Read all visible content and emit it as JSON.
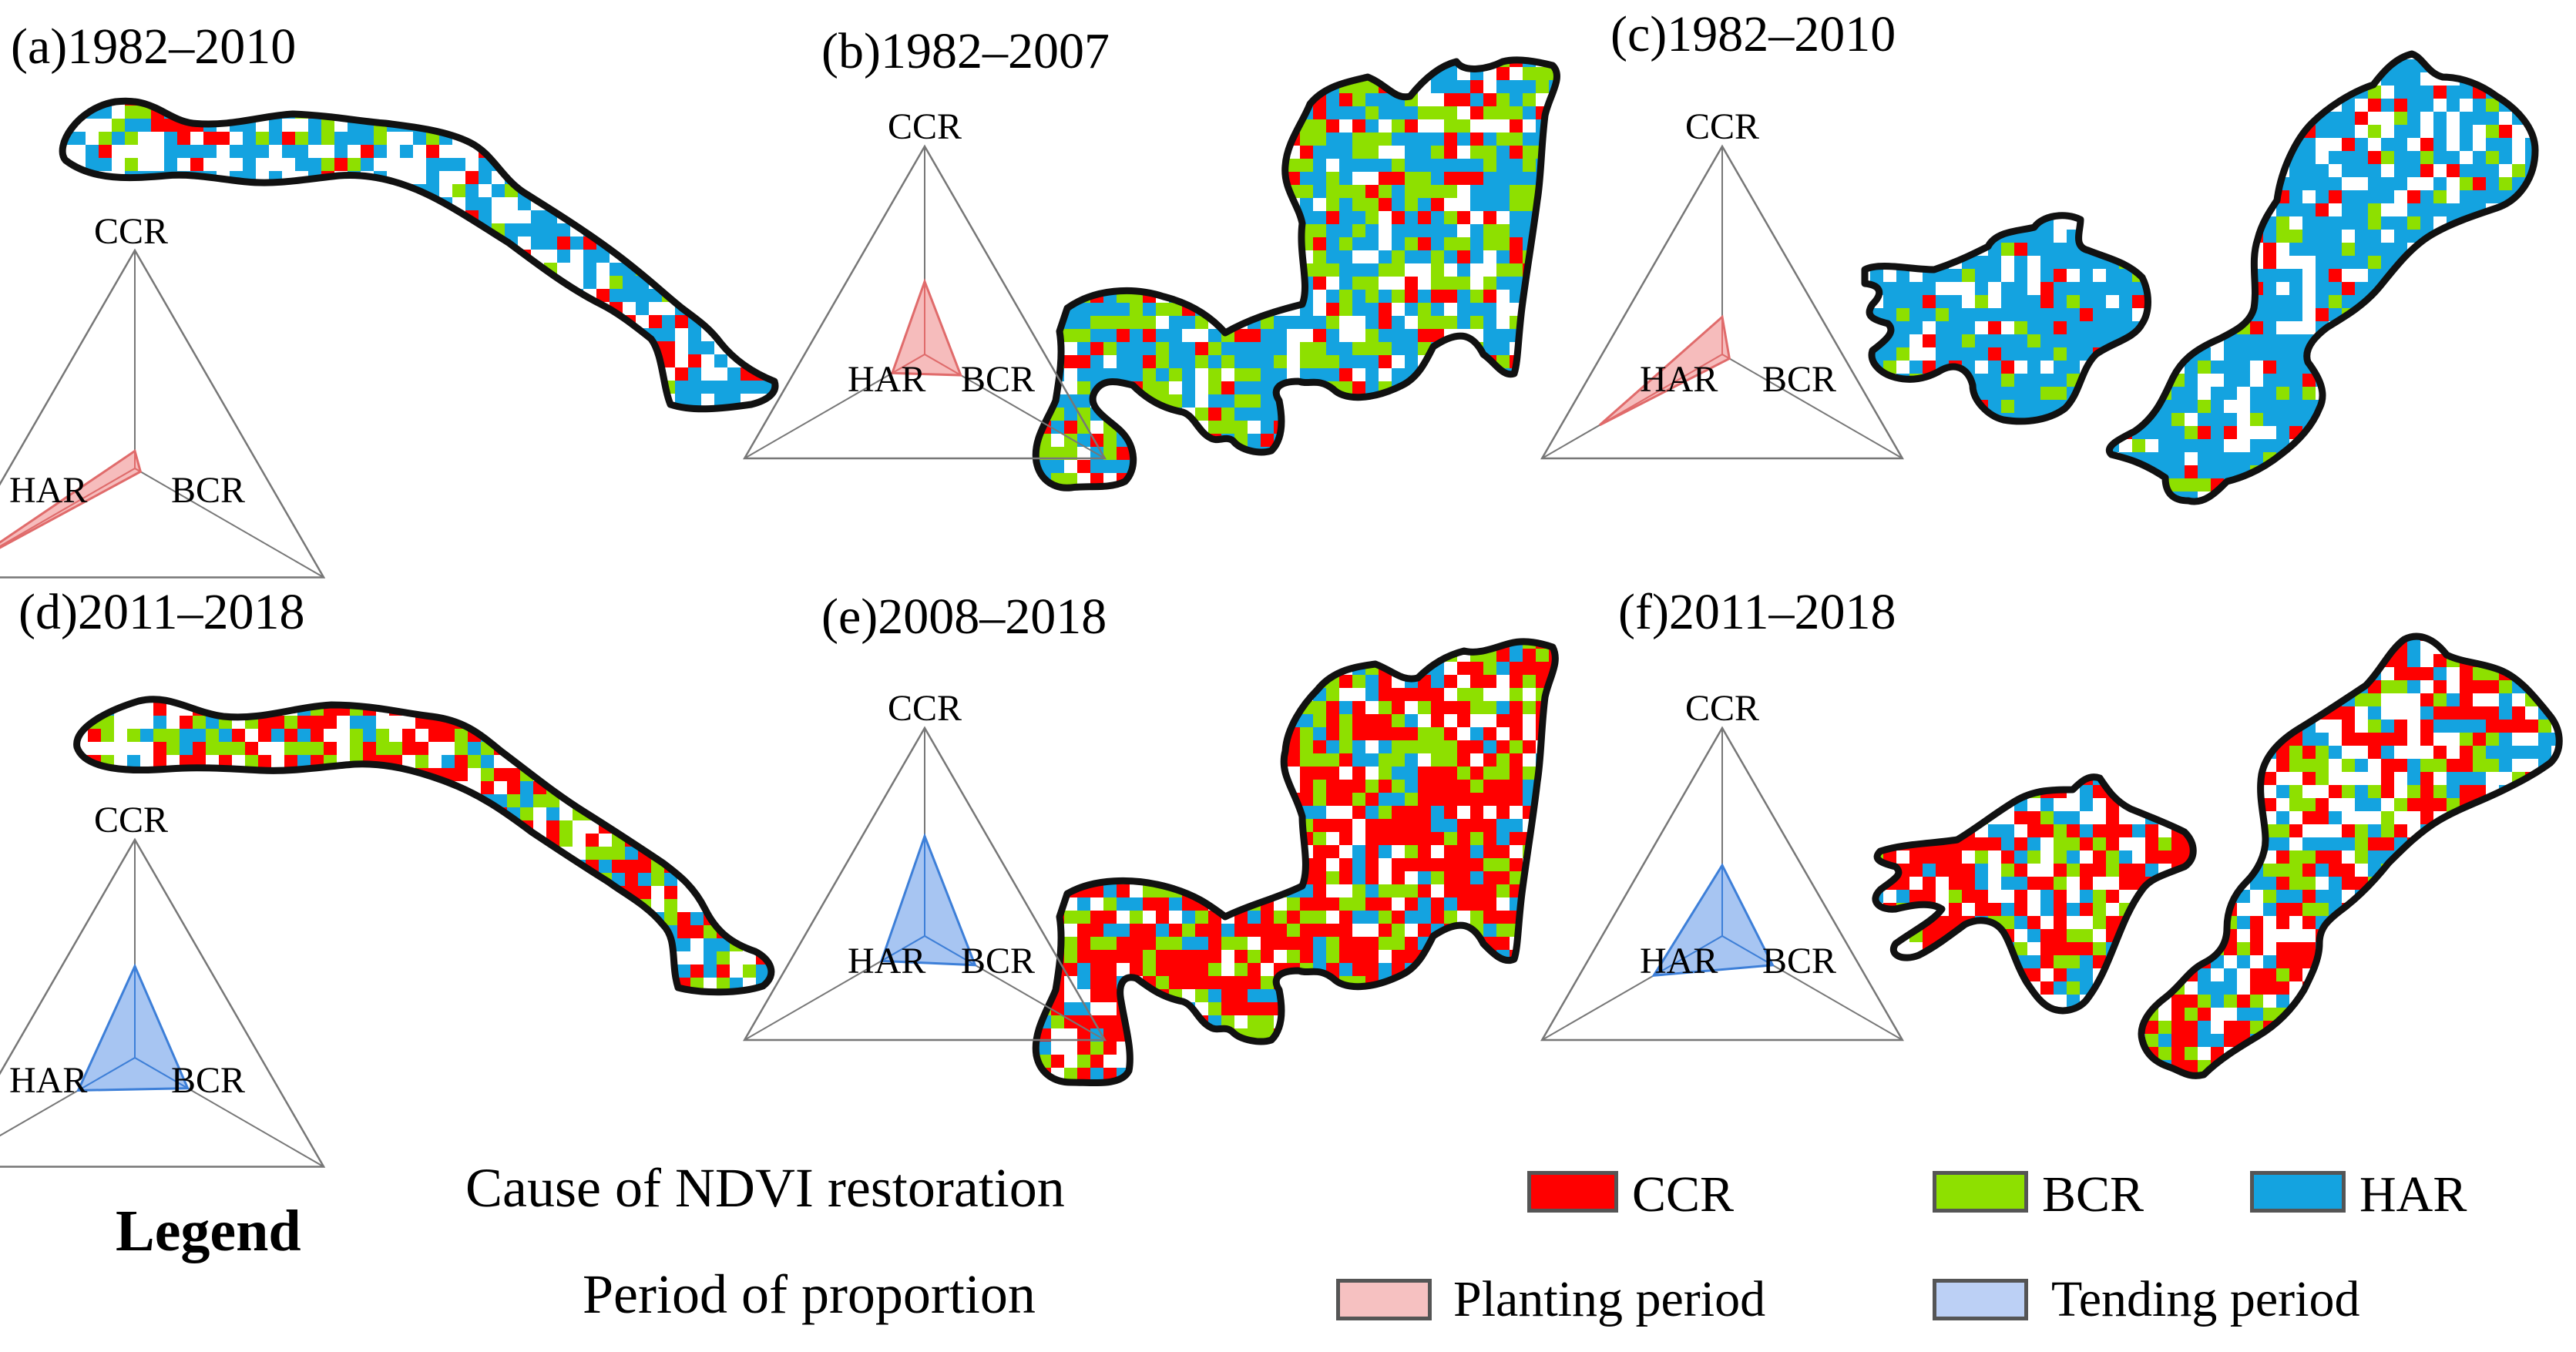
{
  "figure": {
    "panels": [
      {
        "id": "a",
        "title": "(a)1982–2010",
        "period_type": "planting",
        "radar": {
          "axes": [
            "CCR",
            "BCR",
            "HAR"
          ],
          "values": [
            0.08,
            0.03,
            0.92
          ]
        }
      },
      {
        "id": "b",
        "title": "(b)1982–2007",
        "period_type": "planting",
        "radar": {
          "axes": [
            "CCR",
            "BCR",
            "HAR"
          ],
          "values": [
            0.35,
            0.2,
            0.18
          ]
        }
      },
      {
        "id": "c",
        "title": "(c)1982–2010",
        "period_type": "planting",
        "radar": {
          "axes": [
            "CCR",
            "BCR",
            "HAR"
          ],
          "values": [
            0.18,
            0.04,
            0.68
          ]
        }
      },
      {
        "id": "d",
        "title": "(d)2011–2018",
        "period_type": "tending",
        "radar": {
          "axes": [
            "CCR",
            "BCR",
            "HAR"
          ],
          "values": [
            0.42,
            0.28,
            0.3
          ]
        }
      },
      {
        "id": "e",
        "title": "(e)2008–2018",
        "period_type": "tending",
        "radar": {
          "axes": [
            "CCR",
            "BCR",
            "HAR"
          ],
          "values": [
            0.48,
            0.28,
            0.24
          ]
        }
      },
      {
        "id": "f",
        "title": "(f)2011–2018",
        "period_type": "tending",
        "radar": {
          "axes": [
            "CCR",
            "BCR",
            "HAR"
          ],
          "values": [
            0.34,
            0.28,
            0.38
          ]
        }
      }
    ],
    "legend": {
      "heading": "Legend",
      "cause_title": "Cause of NDVI restoration",
      "period_title": "Period of proportion",
      "causes": [
        {
          "label": "CCR",
          "color": "#ff0000"
        },
        {
          "label": "BCR",
          "color": "#8ee000"
        },
        {
          "label": "HAR",
          "color": "#14a3e0"
        }
      ],
      "periods": [
        {
          "label": "Planting period",
          "color": "#f6c1c1"
        },
        {
          "label": "Tending period",
          "color": "#bcd0f5"
        }
      ]
    },
    "colors": {
      "planting_stroke": "#e06b6b",
      "planting_fill": "#f3a5a5",
      "tending_stroke": "#3d7fd8",
      "tending_fill": "#8ab2ee",
      "white": "#ffffff",
      "outline": "#111111"
    }
  }
}
